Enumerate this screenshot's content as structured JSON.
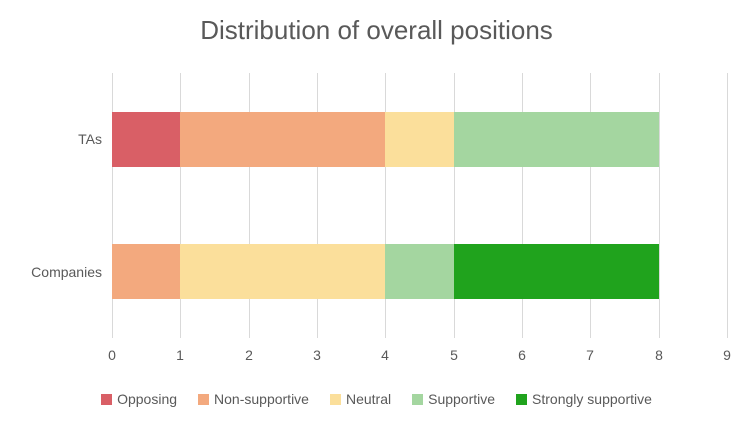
{
  "chart_data": {
    "type": "bar",
    "orientation": "horizontal",
    "stacked": true,
    "title": "Distribution of overall positions",
    "categories": [
      "TAs",
      "Companies"
    ],
    "series": [
      {
        "name": "Opposing",
        "color": "#D95F66",
        "values": [
          1,
          0
        ]
      },
      {
        "name": "Non-supportive",
        "color": "#F3A97E",
        "values": [
          3,
          1
        ]
      },
      {
        "name": "Neutral",
        "color": "#FBDF9B",
        "values": [
          1,
          3
        ]
      },
      {
        "name": "Supportive",
        "color": "#A4D6A0",
        "values": [
          3,
          1
        ]
      },
      {
        "name": "Strongly supportive",
        "color": "#20A31D",
        "values": [
          0,
          3
        ]
      }
    ],
    "xlim": [
      0,
      9
    ],
    "x_ticks": [
      "0",
      "1",
      "2",
      "3",
      "4",
      "5",
      "6",
      "7",
      "8",
      "9"
    ],
    "grid": true,
    "legend_position": "bottom",
    "colors": {
      "text": "#595959",
      "gridline": "#D9D9D9",
      "background": "#FFFFFF"
    }
  }
}
